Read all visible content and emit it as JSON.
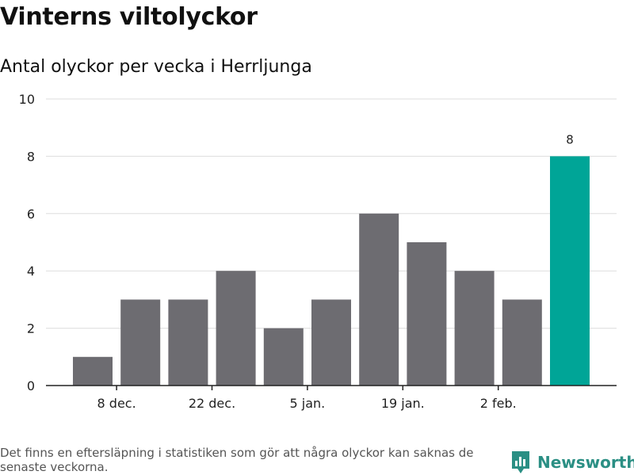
{
  "header": {
    "title": "Vinterns viltolyckor",
    "subtitle": "Antal olyckor per vecka i Herrljunga"
  },
  "chart_data": {
    "type": "bar",
    "title": "Vinterns viltolyckor",
    "subtitle": "Antal olyckor per vecka i Herrljunga",
    "xlabel": "",
    "ylabel": "",
    "ylim": [
      0,
      10
    ],
    "yticks": [
      0,
      2,
      4,
      6,
      8,
      10
    ],
    "grid": true,
    "legend": "none",
    "x_tick_labels": [
      {
        "after_bar_index": 0,
        "label": "8 dec."
      },
      {
        "after_bar_index": 2,
        "label": "22 dec."
      },
      {
        "after_bar_index": 4,
        "label": "5 jan."
      },
      {
        "after_bar_index": 6,
        "label": "19 jan."
      },
      {
        "after_bar_index": 8,
        "label": "2 feb."
      }
    ],
    "values": [
      1,
      3,
      3,
      4,
      2,
      3,
      6,
      5,
      4,
      3,
      8
    ],
    "highlight_index": 10,
    "data_labels": [
      {
        "index": 10,
        "text": "8"
      }
    ],
    "colors": {
      "bar": "#6d6c71",
      "highlight": "#00a597",
      "grid": "#dddddd",
      "axis": "#222222"
    }
  },
  "footer": {
    "note": "Det finns en eftersläpning i statistiken som gör att några olyckor kan saknas de senaste veckorna.",
    "brand_name": "Newsworthy",
    "brand_icon": "newsworthy-logo-icon",
    "brand_color": "#2b8f84"
  }
}
